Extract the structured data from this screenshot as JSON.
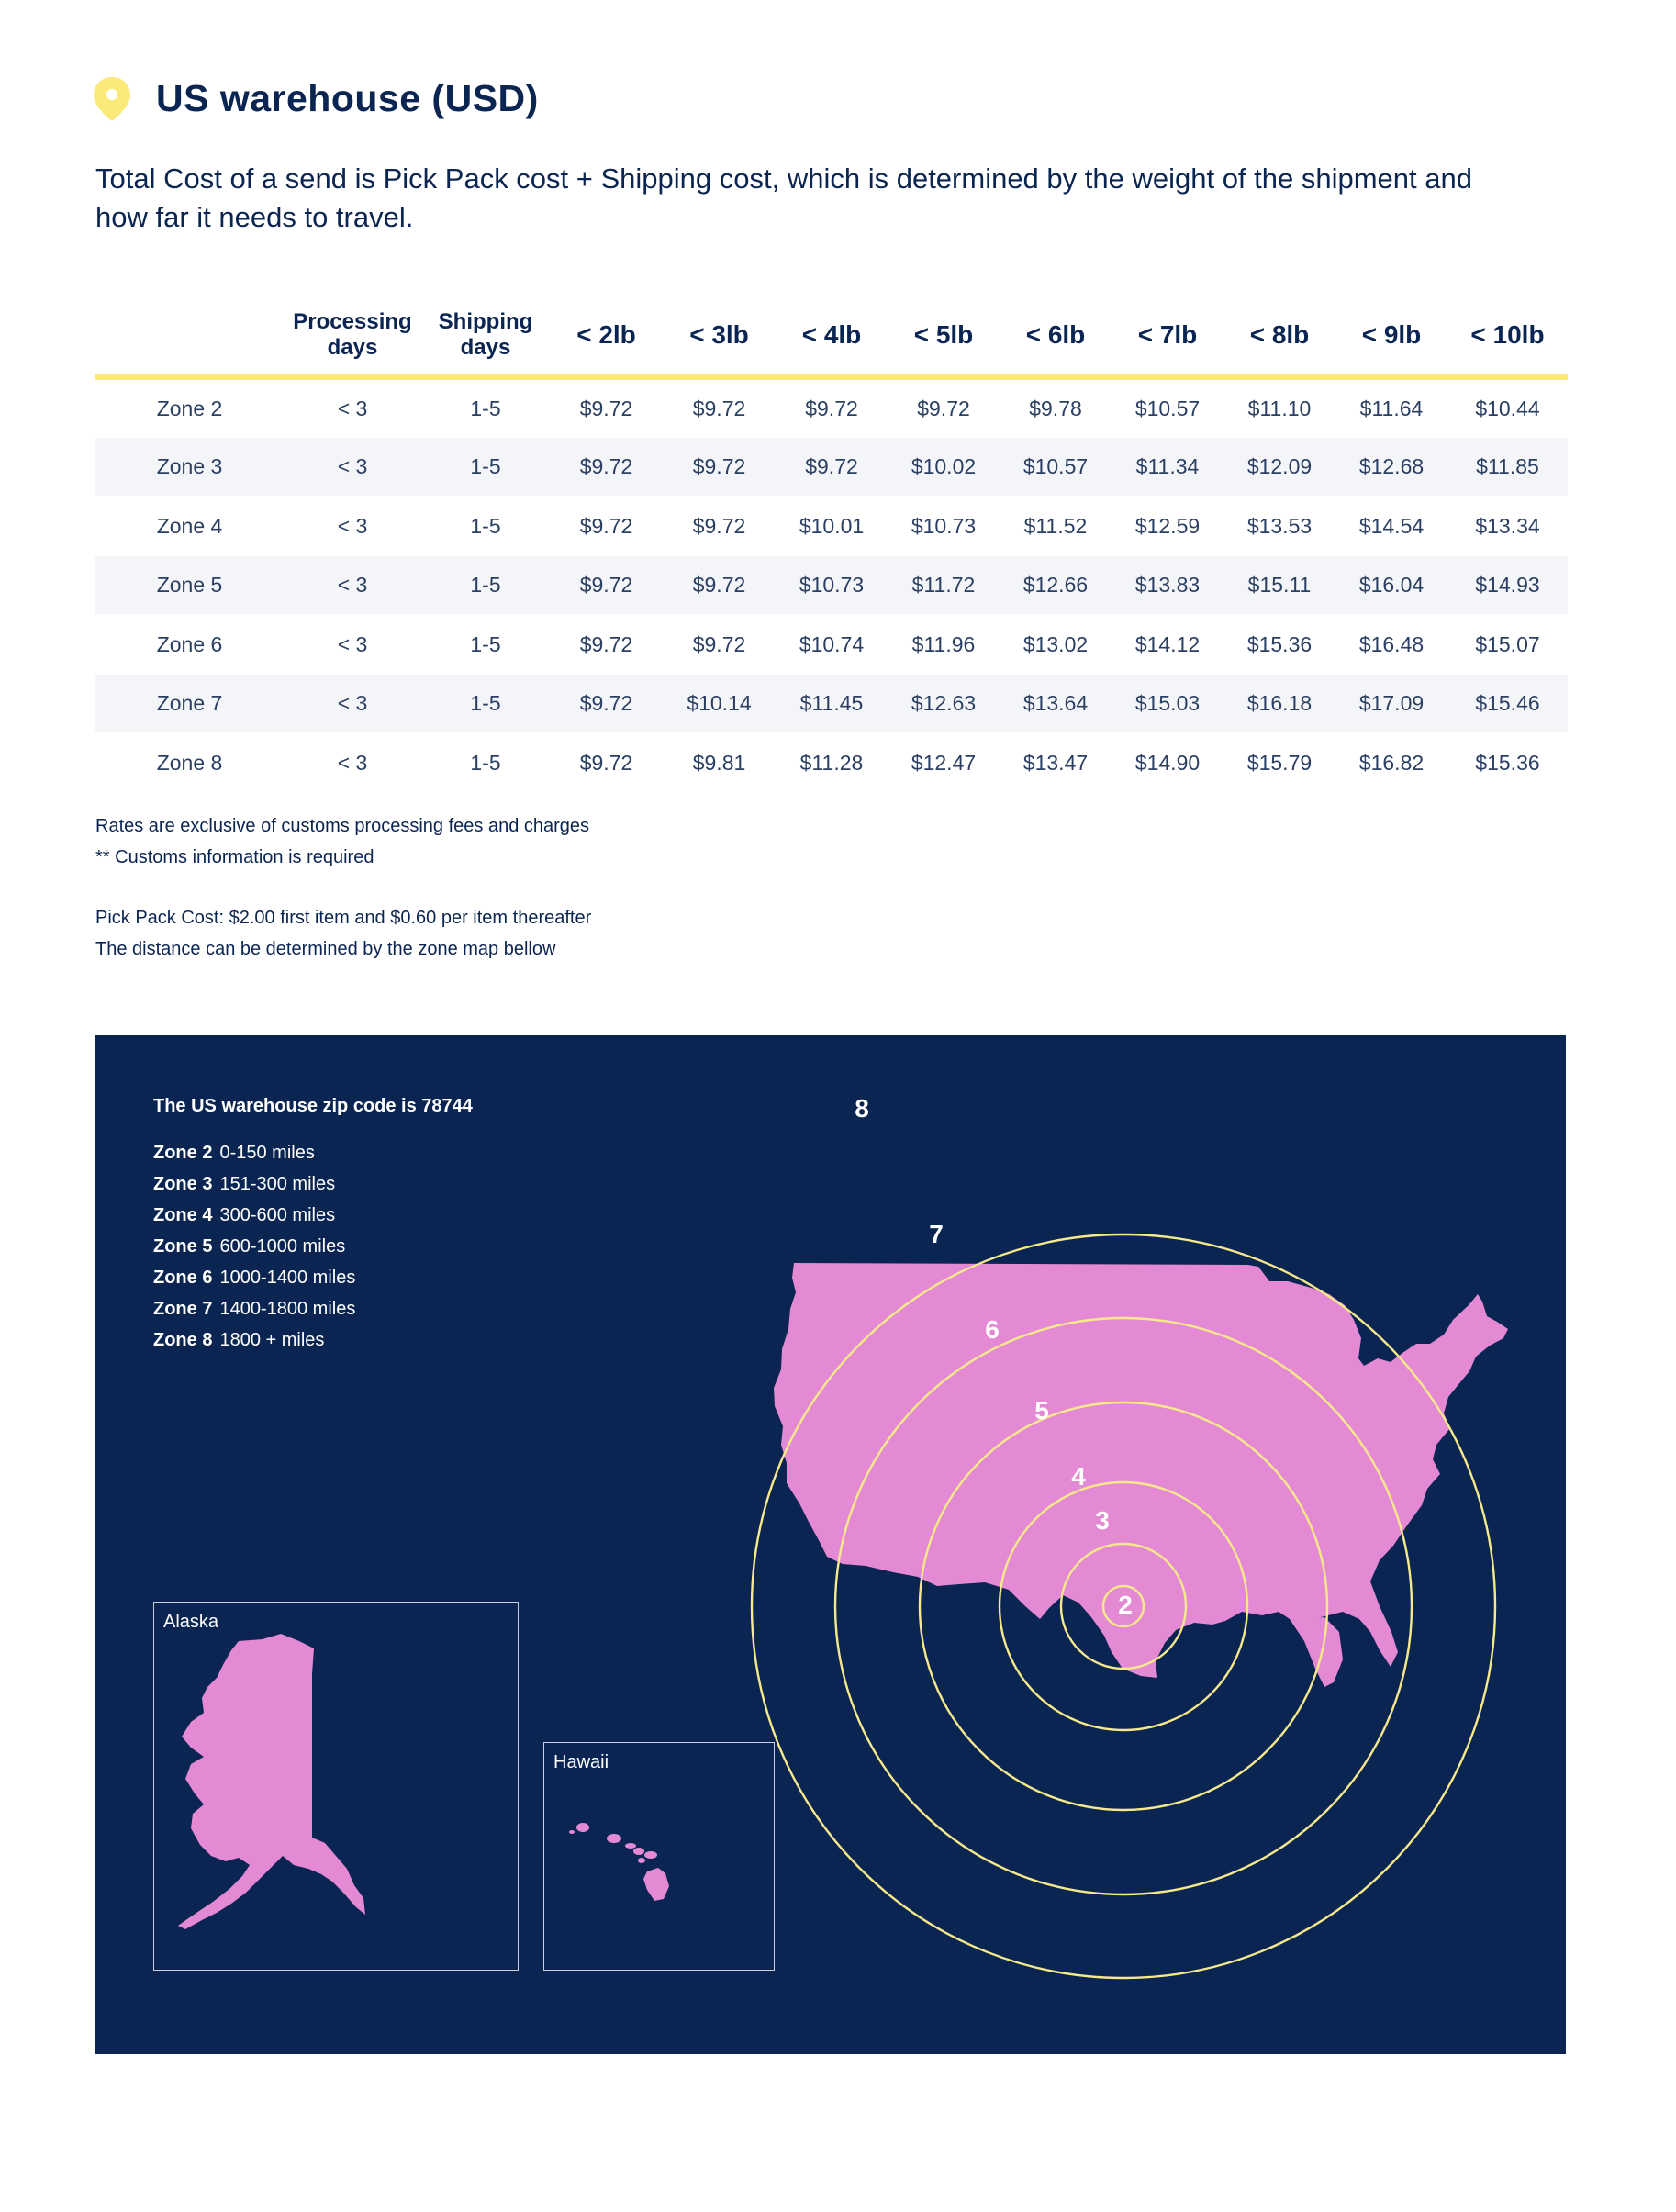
{
  "page": {
    "title": "US warehouse (USD)",
    "intro": "Total Cost of a send is Pick Pack cost + Shipping cost, which is determined by the weight of the shipment and how far it needs to travel."
  },
  "colors": {
    "navy": "#0b2552",
    "accent_yellow": "#fbe97a",
    "map_pink": "#e48ad4",
    "ring_yellow": "#f5e98b"
  },
  "icons": {
    "header": "location-pin-icon"
  },
  "table": {
    "headers": [
      "",
      "Processing days",
      "Shipping days",
      "< 2lb",
      "< 3lb",
      "< 4lb",
      "< 5lb",
      "< 6lb",
      "< 7lb",
      "< 8lb",
      "< 9lb",
      "< 10lb"
    ],
    "rows": [
      {
        "zone": "Zone 2",
        "processing": "< 3",
        "shipping": "1-5",
        "prices": [
          "$9.72",
          "$9.72",
          "$9.72",
          "$9.72",
          "$9.78",
          "$10.57",
          "$11.10",
          "$11.64",
          "$10.44"
        ]
      },
      {
        "zone": "Zone 3",
        "processing": "< 3",
        "shipping": "1-5",
        "prices": [
          "$9.72",
          "$9.72",
          "$9.72",
          "$10.02",
          "$10.57",
          "$11.34",
          "$12.09",
          "$12.68",
          "$11.85"
        ]
      },
      {
        "zone": "Zone 4",
        "processing": "< 3",
        "shipping": "1-5",
        "prices": [
          "$9.72",
          "$9.72",
          "$10.01",
          "$10.73",
          "$11.52",
          "$12.59",
          "$13.53",
          "$14.54",
          "$13.34"
        ]
      },
      {
        "zone": "Zone 5",
        "processing": "< 3",
        "shipping": "1-5",
        "prices": [
          "$9.72",
          "$9.72",
          "$10.73",
          "$11.72",
          "$12.66",
          "$13.83",
          "$15.11",
          "$16.04",
          "$14.93"
        ]
      },
      {
        "zone": "Zone 6",
        "processing": "< 3",
        "shipping": "1-5",
        "prices": [
          "$9.72",
          "$9.72",
          "$10.74",
          "$11.96",
          "$13.02",
          "$14.12",
          "$15.36",
          "$16.48",
          "$15.07"
        ]
      },
      {
        "zone": "Zone 7",
        "processing": "< 3",
        "shipping": "1-5",
        "prices": [
          "$9.72",
          "$10.14",
          "$11.45",
          "$12.63",
          "$13.64",
          "$15.03",
          "$16.18",
          "$17.09",
          "$15.46"
        ]
      },
      {
        "zone": "Zone 8",
        "processing": "< 3",
        "shipping": "1-5",
        "prices": [
          "$9.72",
          "$9.81",
          "$11.28",
          "$12.47",
          "$13.47",
          "$14.90",
          "$15.79",
          "$16.82",
          "$15.36"
        ]
      }
    ]
  },
  "notes": {
    "rates": "Rates are exclusive of customs processing fees and charges",
    "customs": "** Customs information is required",
    "pickpack": "Pick Pack Cost: $2.00 first item and $0.60 per item thereafter",
    "distance": "The distance can be determined by the zone map bellow"
  },
  "map": {
    "zip_line": "The US warehouse zip code is 78744",
    "zones": [
      {
        "name": "Zone 2",
        "range": "0-150 miles"
      },
      {
        "name": "Zone 3",
        "range": "151-300 miles"
      },
      {
        "name": "Zone 4",
        "range": "300-600 miles"
      },
      {
        "name": "Zone 5",
        "range": "600-1000 miles"
      },
      {
        "name": "Zone 6",
        "range": "1000-1400 miles"
      },
      {
        "name": "Zone 7",
        "range": "1400-1800 miles"
      },
      {
        "name": "Zone 8",
        "range": "1800 + miles"
      }
    ],
    "ring_labels": [
      "2",
      "3",
      "4",
      "5",
      "6",
      "7",
      "8"
    ],
    "alaska_label": "Alaska",
    "hawaii_label": "Hawaii"
  }
}
